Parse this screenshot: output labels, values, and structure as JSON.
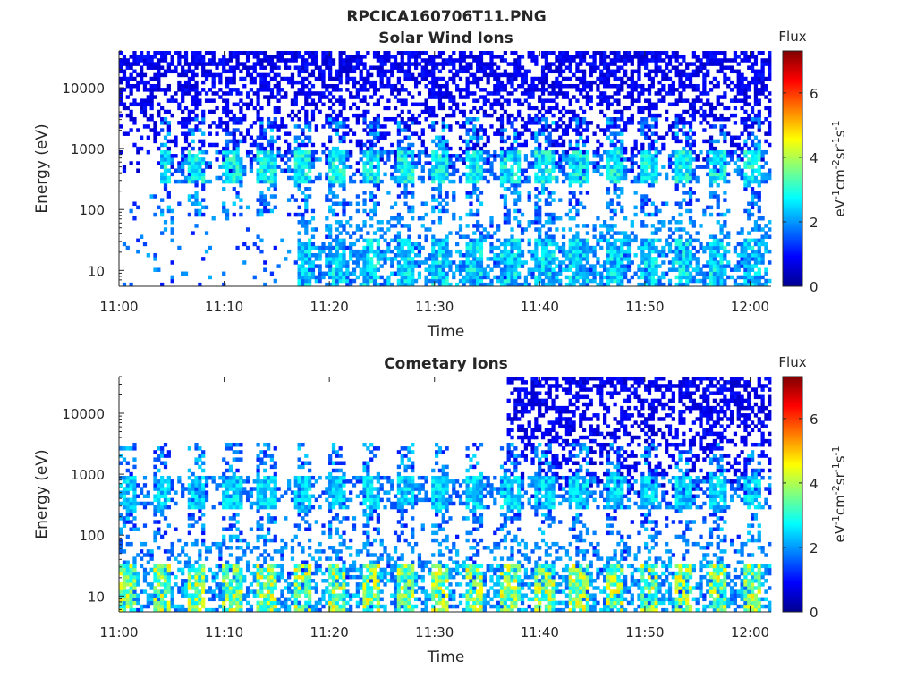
{
  "figure_title": "RPCICA160706T11.PNG",
  "chart_data": [
    {
      "type": "heatmap",
      "title": "Solar Wind Ions",
      "xlabel": "Time",
      "ylabel": "Energy (eV)",
      "y_scale": "log",
      "xlim": [
        "11:00",
        "12:02"
      ],
      "ylim": [
        5.5,
        40000
      ],
      "x_ticks": [
        "11:00",
        "11:10",
        "11:20",
        "11:30",
        "11:40",
        "11:50",
        "12:00"
      ],
      "y_ticks": [
        "10",
        "100",
        "1000",
        "10000"
      ],
      "colorbar": {
        "label": "Flux",
        "unit": "eV-1cm-2sr-1s-1",
        "range": [
          0,
          7.3
        ],
        "ticks": [
          "0",
          "2",
          "4",
          "6"
        ],
        "colormap": "jet"
      },
      "features": [
        {
          "band": "periodic pulses ~500 eV",
          "energy_ev": 500,
          "peak_flux": 3.2,
          "start": "11:04",
          "end": "12:02"
        },
        {
          "band": "low-energy pulses ~10-20 eV",
          "energy_ev": 14,
          "peak_flux": 3.0,
          "start": "11:17",
          "end": "12:02"
        },
        {
          "band": "high-energy background",
          "energy_ev": 10000,
          "peak_flux": 1.0,
          "start": "11:00",
          "end": "12:02"
        }
      ]
    },
    {
      "type": "heatmap",
      "title": "Cometary Ions",
      "xlabel": "Time",
      "ylabel": "Energy (eV)",
      "y_scale": "log",
      "xlim": [
        "11:00",
        "12:02"
      ],
      "ylim": [
        5.5,
        40000
      ],
      "x_ticks": [
        "11:00",
        "11:10",
        "11:20",
        "11:30",
        "11:40",
        "11:50",
        "12:00"
      ],
      "y_ticks": [
        "10",
        "100",
        "1000",
        "10000"
      ],
      "colorbar": {
        "label": "Flux",
        "unit": "eV-1cm-2sr-1s-1",
        "range": [
          0,
          7.3
        ],
        "ticks": [
          "0",
          "2",
          "4",
          "6"
        ],
        "colormap": "jet"
      },
      "features": [
        {
          "band": "periodic pulses ~500 eV",
          "energy_ev": 500,
          "peak_flux": 2.8,
          "start": "11:00",
          "end": "12:02"
        },
        {
          "band": "low-energy pulses ~10-20 eV",
          "energy_ev": 14,
          "peak_flux": 4.6,
          "start": "11:00",
          "end": "12:02"
        },
        {
          "band": "high-energy background",
          "energy_ev": 10000,
          "peak_flux": 1.0,
          "start": "11:37",
          "end": "12:02"
        }
      ]
    }
  ]
}
